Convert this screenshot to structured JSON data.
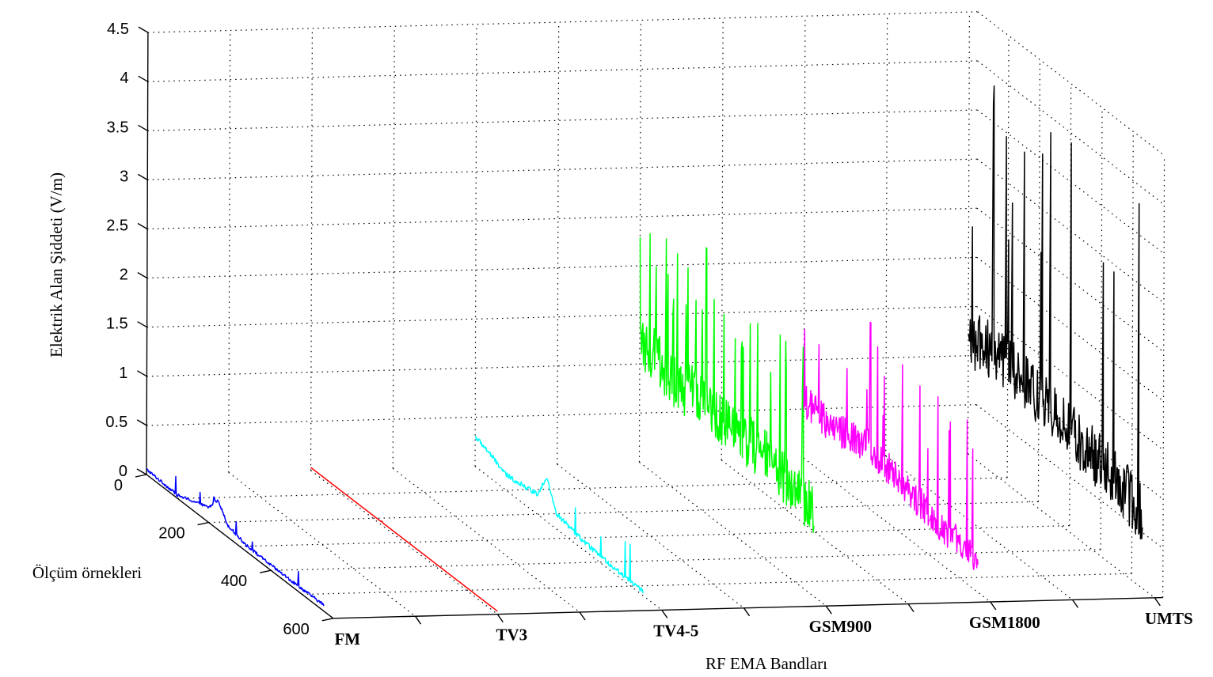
{
  "chart_data": {
    "type": "line",
    "projection": "3d",
    "zlabel": "Elektrik Alan Şiddeti (V/m)",
    "xlabel": "RF EMA Bandları",
    "ylabel": "Ölçüm örnekleri",
    "zlim": [
      0,
      4.5
    ],
    "z_ticks": [
      "0",
      "0.5",
      "1",
      "1.5",
      "2",
      "2.5",
      "3",
      "3.5",
      "4",
      "4.5"
    ],
    "ylim": [
      0,
      600
    ],
    "y_ticks": [
      "0",
      "200",
      "400",
      "600"
    ],
    "categories": [
      "FM",
      "TV3",
      "TV4-5",
      "GSM900",
      "GSM1800",
      "UMTS"
    ],
    "grid": true,
    "series": [
      {
        "category": "FM",
        "color": "#0000ff",
        "samples": 600,
        "baseline": 0.05,
        "peak": 0.3,
        "profile": [
          [
            0,
            0.05
          ],
          [
            50,
            0.04
          ],
          [
            100,
            0.03
          ],
          [
            200,
            0.15
          ],
          [
            230,
            0.3
          ],
          [
            260,
            0.12
          ],
          [
            320,
            0.06
          ],
          [
            400,
            0.05
          ],
          [
            480,
            0.05
          ],
          [
            570,
            0.06
          ]
        ]
      },
      {
        "category": "TV3",
        "color": "#ff0000",
        "samples": 600,
        "baseline": 0.03,
        "peak": 0.04,
        "profile": [
          [
            0,
            0.03
          ],
          [
            200,
            0.03
          ],
          [
            400,
            0.03
          ],
          [
            600,
            0.03
          ]
        ]
      },
      {
        "category": "TV4-5",
        "color": "#00ffff",
        "samples": 600,
        "baseline": 0.1,
        "peak": 0.5,
        "profile": [
          [
            0,
            0.3
          ],
          [
            40,
            0.25
          ],
          [
            100,
            0.15
          ],
          [
            200,
            0.2
          ],
          [
            230,
            0.45
          ],
          [
            260,
            0.15
          ],
          [
            350,
            0.08
          ],
          [
            450,
            0.05
          ],
          [
            540,
            0.04
          ]
        ]
      },
      {
        "category": "GSM900",
        "color": "#00ff00",
        "samples": 600,
        "baseline": 0.8,
        "peak": 2.7,
        "profile": [
          [
            0,
            1.1
          ],
          [
            50,
            1.2
          ],
          [
            100,
            1.0
          ],
          [
            200,
            1.1
          ],
          [
            300,
            1.0
          ],
          [
            400,
            1.0
          ],
          [
            500,
            0.9
          ],
          [
            560,
            0.8
          ]
        ]
      },
      {
        "category": "GSM1800",
        "color": "#ff00ff",
        "samples": 600,
        "baseline": 0.5,
        "peak": 1.9,
        "profile": [
          [
            0,
            0.55
          ],
          [
            100,
            0.5
          ],
          [
            200,
            0.6
          ],
          [
            300,
            0.5
          ],
          [
            400,
            0.4
          ],
          [
            500,
            0.3
          ],
          [
            560,
            0.25
          ]
        ]
      },
      {
        "category": "UMTS",
        "color": "#000000",
        "samples": 600,
        "baseline": 0.9,
        "peak": 4.3,
        "profile": [
          [
            0,
            1.1
          ],
          [
            100,
            1.2
          ],
          [
            200,
            1.1
          ],
          [
            300,
            1.0
          ],
          [
            400,
            0.9
          ],
          [
            500,
            0.8
          ],
          [
            560,
            0.7
          ]
        ]
      }
    ]
  }
}
